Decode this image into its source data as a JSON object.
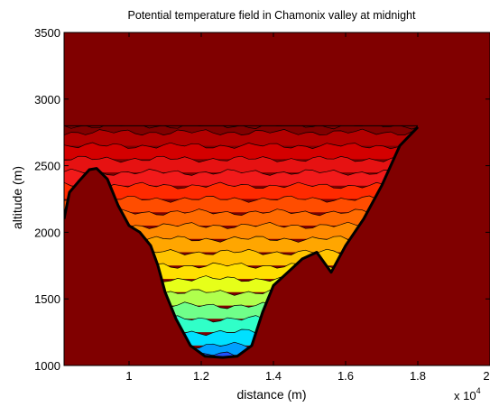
{
  "chart_data": {
    "type": "heatmap",
    "subtype": "filled-contour",
    "title": "Potential temperature field in Chamonix valley at midnight",
    "xlabel": "distance (m)",
    "ylabel": "altitude (m)",
    "x_exponent_label": "x 10",
    "x_exponent_power": "4",
    "xlim": [
      8200,
      20000
    ],
    "ylim": [
      1000,
      3500
    ],
    "x_ticks": [
      10000,
      12000,
      14000,
      16000,
      18000,
      20000
    ],
    "x_tick_labels": [
      "1",
      "1.2",
      "1.4",
      "1.6",
      "1.8",
      "2"
    ],
    "y_ticks": [
      1000,
      1500,
      2000,
      2500,
      3000,
      3500
    ],
    "y_tick_labels": [
      "1000",
      "1500",
      "2000",
      "2500",
      "3000",
      "3500"
    ],
    "colormap": "jet",
    "background_color": "#800000",
    "terrain_outline_color": "#000000",
    "valley_terrain_profile": [
      {
        "x": 8200,
        "top": 2800,
        "bottom": 2100
      },
      {
        "x": 8350,
        "top": 2800,
        "bottom": 2300
      },
      {
        "x": 8600,
        "top": 2800,
        "bottom": 2380
      },
      {
        "x": 8900,
        "top": 2800,
        "bottom": 2470
      },
      {
        "x": 9100,
        "top": 2800,
        "bottom": 2480
      },
      {
        "x": 9400,
        "top": 2800,
        "bottom": 2400
      },
      {
        "x": 9700,
        "top": 2800,
        "bottom": 2200
      },
      {
        "x": 10000,
        "top": 2800,
        "bottom": 2050
      },
      {
        "x": 10300,
        "top": 2800,
        "bottom": 2000
      },
      {
        "x": 10600,
        "top": 2800,
        "bottom": 1900
      },
      {
        "x": 10800,
        "top": 2800,
        "bottom": 1750
      },
      {
        "x": 11000,
        "top": 2800,
        "bottom": 1550
      },
      {
        "x": 11300,
        "top": 2800,
        "bottom": 1350
      },
      {
        "x": 11700,
        "top": 2800,
        "bottom": 1150
      },
      {
        "x": 12100,
        "top": 2800,
        "bottom": 1070
      },
      {
        "x": 12600,
        "top": 2800,
        "bottom": 1060
      },
      {
        "x": 13000,
        "top": 2800,
        "bottom": 1070
      },
      {
        "x": 13400,
        "top": 2800,
        "bottom": 1150
      },
      {
        "x": 13700,
        "top": 2800,
        "bottom": 1400
      },
      {
        "x": 14000,
        "top": 2800,
        "bottom": 1600
      },
      {
        "x": 14400,
        "top": 2800,
        "bottom": 1700
      },
      {
        "x": 14800,
        "top": 2800,
        "bottom": 1800
      },
      {
        "x": 15200,
        "top": 2800,
        "bottom": 1850
      },
      {
        "x": 15600,
        "top": 2800,
        "bottom": 1700
      },
      {
        "x": 16000,
        "top": 2800,
        "bottom": 1900
      },
      {
        "x": 16500,
        "top": 2800,
        "bottom": 2100
      },
      {
        "x": 17000,
        "top": 2800,
        "bottom": 2350
      },
      {
        "x": 17500,
        "top": 2800,
        "bottom": 2650
      },
      {
        "x": 18000,
        "top": 2800,
        "bottom": 2790
      }
    ],
    "contour_bands": [
      {
        "altitude": 2800,
        "color": "#800000"
      },
      {
        "altitude": 2750,
        "color": "#b30000"
      },
      {
        "altitude": 2650,
        "color": "#d40000"
      },
      {
        "altitude": 2550,
        "color": "#e61212"
      },
      {
        "altitude": 2450,
        "color": "#f21a1a"
      },
      {
        "altitude": 2350,
        "color": "#ff2a00"
      },
      {
        "altitude": 2250,
        "color": "#ff4d00"
      },
      {
        "altitude": 2150,
        "color": "#ff6a00"
      },
      {
        "altitude": 2050,
        "color": "#ff8a00"
      },
      {
        "altitude": 1950,
        "color": "#ffa600"
      },
      {
        "altitude": 1850,
        "color": "#ffc400"
      },
      {
        "altitude": 1750,
        "color": "#ffe000"
      },
      {
        "altitude": 1650,
        "color": "#e6ff19"
      },
      {
        "altitude": 1550,
        "color": "#b0ff4d"
      },
      {
        "altitude": 1450,
        "color": "#70ff8a"
      },
      {
        "altitude": 1350,
        "color": "#30ffc8"
      },
      {
        "altitude": 1250,
        "color": "#00e0ff"
      },
      {
        "altitude": 1150,
        "color": "#00a0ff"
      },
      {
        "altitude": 1080,
        "color": "#2050ff"
      }
    ]
  }
}
